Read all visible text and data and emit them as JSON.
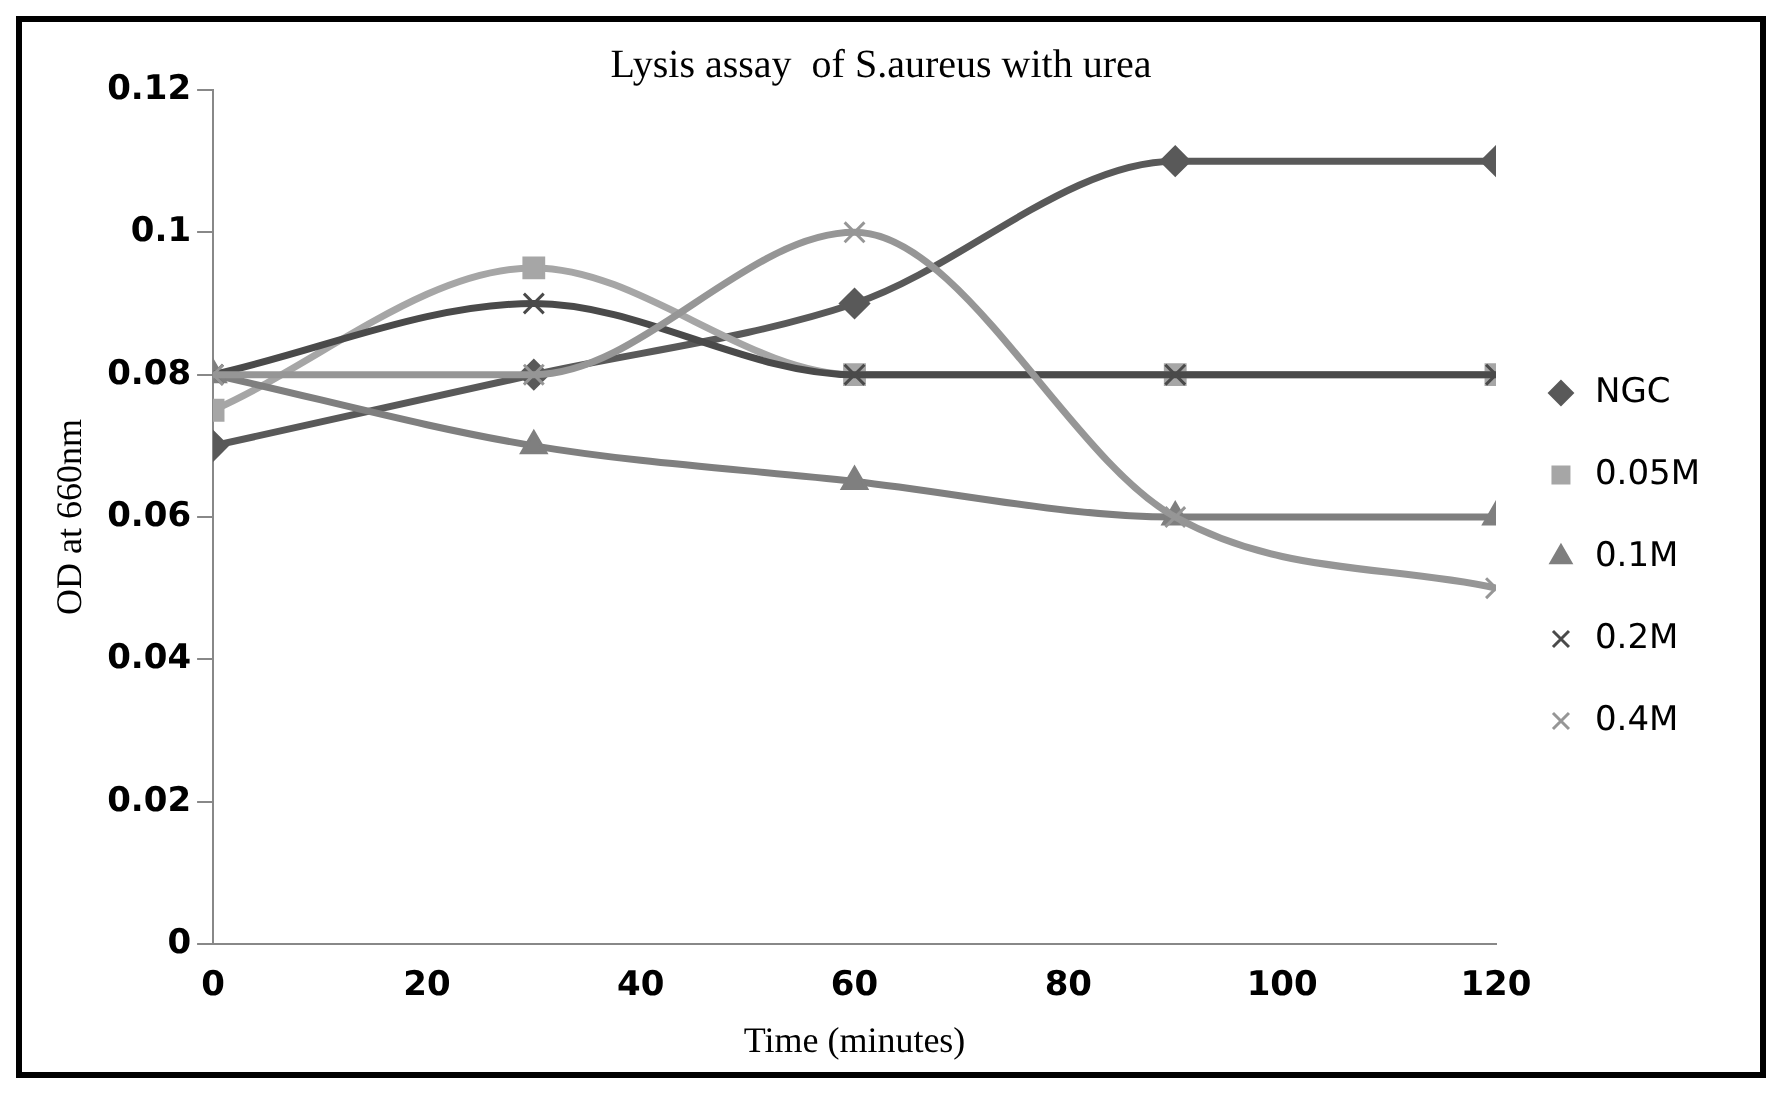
{
  "chart_data": {
    "type": "line",
    "title": "Lysis assay  of S.aureus with urea",
    "xlabel": "Time (minutes)",
    "ylabel": "OD at 660nm",
    "x": [
      0,
      30,
      60,
      90,
      120
    ],
    "xlim": [
      0,
      120
    ],
    "xticks": [
      0,
      20,
      40,
      60,
      80,
      100,
      120
    ],
    "ylim": [
      0,
      0.12
    ],
    "yticks": [
      0,
      0.02,
      0.04,
      0.06,
      0.08,
      0.1,
      0.12
    ],
    "grid": false,
    "legend": "right",
    "series": [
      {
        "name": "NGC",
        "color": "#595959",
        "marker": "diamond",
        "values": [
          0.07,
          0.08,
          0.09,
          0.11,
          0.11
        ]
      },
      {
        "name": "0.05M",
        "color": "#a6a6a6",
        "marker": "square",
        "values": [
          0.075,
          0.095,
          0.08,
          0.08,
          0.08
        ]
      },
      {
        "name": "0.1M",
        "color": "#7f7f7f",
        "marker": "triangle",
        "values": [
          0.08,
          0.07,
          0.065,
          0.06,
          0.06
        ]
      },
      {
        "name": "0.2M",
        "color": "#4a4a4a",
        "marker": "cross",
        "values": [
          0.08,
          0.09,
          0.08,
          0.08,
          0.08
        ]
      },
      {
        "name": "0.4M",
        "color": "#969696",
        "marker": "cross",
        "values": [
          0.08,
          0.08,
          0.1,
          0.06,
          0.05
        ]
      }
    ]
  }
}
